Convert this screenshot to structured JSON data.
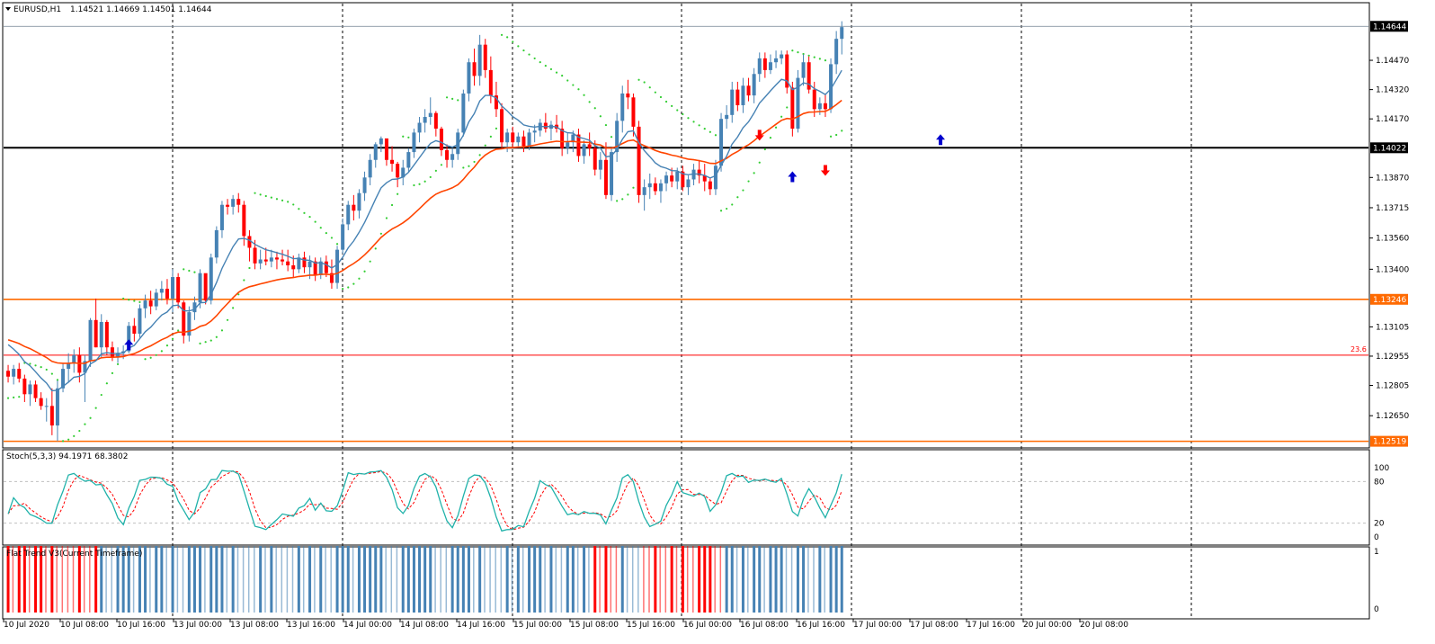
{
  "header": {
    "symbol": "EURUSD,H1",
    "ohlc": "1.14521 1.14669 1.14501 1.14644"
  },
  "price_axis": {
    "ticks": [
      "1.14470",
      "1.14320",
      "1.14170",
      "1.13870",
      "1.13715",
      "1.13560",
      "1.13400",
      "1.13105",
      "1.12955",
      "1.12805",
      "1.12650"
    ],
    "ticks_values": [
      1.1447,
      1.1432,
      1.1417,
      1.1387,
      1.13715,
      1.1356,
      1.134,
      1.13105,
      1.12955,
      1.12805,
      1.1265
    ],
    "current_price": "1.14644",
    "current_price_value": 1.14644
  },
  "levels": [
    {
      "price": 1.14022,
      "label": "1.14022",
      "color": "#000000",
      "tag_bg": "#000000",
      "tag_fg": "#ffffff"
    },
    {
      "price": 1.13246,
      "label": "1.13246",
      "color": "#ff6a00",
      "tag_bg": "#ff6a00",
      "tag_fg": "#ffffff"
    },
    {
      "price": 1.12519,
      "label": "1.12519",
      "color": "#ff6a00",
      "tag_bg": "#ff6a00",
      "tag_fg": "#ffffff"
    }
  ],
  "fib": {
    "price": 1.1296,
    "label": "23.6",
    "color": "#ff0000"
  },
  "time_axis": {
    "labels": [
      "10 Jul 2020",
      "10 Jul 08:00",
      "10 Jul 16:00",
      "13 Jul 00:00",
      "13 Jul 08:00",
      "13 Jul 16:00",
      "14 Jul 00:00",
      "14 Jul 08:00",
      "14 Jul 16:00",
      "15 Jul 00:00",
      "15 Jul 08:00",
      "15 Jul 16:00",
      "16 Jul 00:00",
      "16 Jul 08:00",
      "16 Jul 16:00",
      "17 Jul 00:00",
      "17 Jul 08:00",
      "17 Jul 16:00",
      "20 Jul 00:00",
      "20 Jul 08:00"
    ]
  },
  "stoch": {
    "label": "Stoch(5,3,3) 94.1971 68.3802",
    "ticks": [
      "100",
      "80",
      "20",
      "0"
    ],
    "ticks_values": [
      100,
      80,
      20,
      0
    ]
  },
  "flat_trend": {
    "label": "Flat Trend V3(Current Timeframe)",
    "ticks": [
      "1",
      "0"
    ]
  },
  "colors": {
    "bull": "#4682b4",
    "bear": "#ff0000",
    "ma_fast": "#4682b4",
    "ma_slow": "#ff4500",
    "sar": "#32cd32",
    "stoch_main": "#20b2aa",
    "stoch_signal": "#ff0000",
    "arrow": "#0000cd",
    "arrow_down": "#ff0000"
  },
  "chart_data": {
    "type": "candlestick",
    "timeframe": "H1",
    "candles": [
      [
        1.1288,
        1.1291,
        1.1282,
        1.1285
      ],
      [
        1.1285,
        1.1291,
        1.1281,
        1.1289
      ],
      [
        1.1289,
        1.1292,
        1.1282,
        1.1284
      ],
      [
        1.1284,
        1.1286,
        1.1272,
        1.1276
      ],
      [
        1.1276,
        1.1283,
        1.127,
        1.1281
      ],
      [
        1.1281,
        1.1283,
        1.1272,
        1.1274
      ],
      [
        1.1274,
        1.1277,
        1.1268,
        1.127
      ],
      [
        1.127,
        1.1274,
        1.1262,
        1.127
      ],
      [
        1.127,
        1.1279,
        1.1255,
        1.126
      ],
      [
        1.126,
        1.1283,
        1.1252,
        1.1279
      ],
      [
        1.1279,
        1.1292,
        1.1277,
        1.1289
      ],
      [
        1.1289,
        1.1297,
        1.1282,
        1.1292
      ],
      [
        1.1292,
        1.1299,
        1.1287,
        1.1296
      ],
      [
        1.1296,
        1.13,
        1.1282,
        1.1287
      ],
      [
        1.1287,
        1.1296,
        1.1272,
        1.1293
      ],
      [
        1.1293,
        1.1315,
        1.129,
        1.1314
      ],
      [
        1.1314,
        1.1325,
        1.13,
        1.13
      ],
      [
        1.13,
        1.1317,
        1.1295,
        1.1313
      ],
      [
        1.1313,
        1.1314,
        1.1296,
        1.13
      ],
      [
        1.13,
        1.1303,
        1.1293,
        1.1295
      ],
      [
        1.1295,
        1.13,
        1.1292,
        1.1297
      ],
      [
        1.1297,
        1.1301,
        1.1294,
        1.1298
      ],
      [
        1.1298,
        1.1313,
        1.1297,
        1.1311
      ],
      [
        1.1311,
        1.1315,
        1.1303,
        1.1307
      ],
      [
        1.1307,
        1.1322,
        1.1305,
        1.132
      ],
      [
        1.132,
        1.1327,
        1.1315,
        1.1324
      ],
      [
        1.1324,
        1.1329,
        1.1317,
        1.1321
      ],
      [
        1.1321,
        1.133,
        1.1319,
        1.1328
      ],
      [
        1.1328,
        1.1334,
        1.1324,
        1.133
      ],
      [
        1.133,
        1.1335,
        1.1322,
        1.1325
      ],
      [
        1.1325,
        1.134,
        1.1318,
        1.1336
      ],
      [
        1.1336,
        1.1338,
        1.132,
        1.1323
      ],
      [
        1.1323,
        1.1324,
        1.1302,
        1.1306
      ],
      [
        1.1306,
        1.1321,
        1.1303,
        1.1318
      ],
      [
        1.1318,
        1.1326,
        1.1314,
        1.1323
      ],
      [
        1.1323,
        1.134,
        1.132,
        1.1338
      ],
      [
        1.1338,
        1.1336,
        1.1322,
        1.1324
      ],
      [
        1.1324,
        1.1348,
        1.1322,
        1.1346
      ],
      [
        1.1346,
        1.1362,
        1.1343,
        1.136
      ],
      [
        1.136,
        1.1375,
        1.1356,
        1.1373
      ],
      [
        1.1373,
        1.1376,
        1.1368,
        1.1372
      ],
      [
        1.1372,
        1.1378,
        1.1368,
        1.1376
      ],
      [
        1.1376,
        1.1379,
        1.1369,
        1.1373
      ],
      [
        1.1373,
        1.1375,
        1.1352,
        1.1357
      ],
      [
        1.1357,
        1.136,
        1.1344,
        1.1351
      ],
      [
        1.1351,
        1.1355,
        1.134,
        1.1343
      ],
      [
        1.1343,
        1.135,
        1.134,
        1.1345
      ],
      [
        1.1345,
        1.1351,
        1.1342,
        1.1344
      ],
      [
        1.1344,
        1.135,
        1.1341,
        1.1346
      ],
      [
        1.1346,
        1.1349,
        1.134,
        1.1345
      ],
      [
        1.1345,
        1.135,
        1.1342,
        1.1344
      ],
      [
        1.1344,
        1.135,
        1.1339,
        1.1342
      ],
      [
        1.1342,
        1.1347,
        1.1336,
        1.134
      ],
      [
        1.134,
        1.1348,
        1.1338,
        1.1346
      ],
      [
        1.1346,
        1.1349,
        1.1338,
        1.1341
      ],
      [
        1.1341,
        1.1347,
        1.1335,
        1.1344
      ],
      [
        1.1344,
        1.1346,
        1.1334,
        1.1337
      ],
      [
        1.1337,
        1.1346,
        1.1335,
        1.1344
      ],
      [
        1.1344,
        1.1347,
        1.1336,
        1.1338
      ],
      [
        1.1338,
        1.1345,
        1.133,
        1.1333
      ],
      [
        1.1333,
        1.1352,
        1.133,
        1.135
      ],
      [
        1.135,
        1.1366,
        1.1348,
        1.1363
      ],
      [
        1.1363,
        1.1375,
        1.136,
        1.1373
      ],
      [
        1.1373,
        1.1378,
        1.1365,
        1.137
      ],
      [
        1.137,
        1.1381,
        1.1366,
        1.1379
      ],
      [
        1.1379,
        1.139,
        1.1375,
        1.1387
      ],
      [
        1.1387,
        1.1399,
        1.1383,
        1.1396
      ],
      [
        1.1396,
        1.1405,
        1.1392,
        1.1404
      ],
      [
        1.1404,
        1.1408,
        1.14,
        1.1407
      ],
      [
        1.1407,
        1.1405,
        1.1393,
        1.1396
      ],
      [
        1.1396,
        1.1403,
        1.139,
        1.1394
      ],
      [
        1.1394,
        1.1395,
        1.1382,
        1.1387
      ],
      [
        1.1387,
        1.1396,
        1.1383,
        1.1392
      ],
      [
        1.1392,
        1.1402,
        1.139,
        1.14
      ],
      [
        1.14,
        1.1412,
        1.1397,
        1.141
      ],
      [
        1.141,
        1.1418,
        1.1405,
        1.1415
      ],
      [
        1.1415,
        1.1422,
        1.141,
        1.1418
      ],
      [
        1.1418,
        1.1428,
        1.1414,
        1.142
      ],
      [
        1.142,
        1.1421,
        1.1408,
        1.1412
      ],
      [
        1.1412,
        1.1413,
        1.1398,
        1.1401
      ],
      [
        1.1401,
        1.1404,
        1.1392,
        1.1396
      ],
      [
        1.1396,
        1.1402,
        1.1392,
        1.1399
      ],
      [
        1.1399,
        1.1412,
        1.1396,
        1.141
      ],
      [
        1.141,
        1.1432,
        1.1408,
        1.143
      ],
      [
        1.143,
        1.1448,
        1.1426,
        1.1446
      ],
      [
        1.1446,
        1.1453,
        1.1434,
        1.1439
      ],
      [
        1.1439,
        1.146,
        1.1434,
        1.1455
      ],
      [
        1.1455,
        1.1458,
        1.1438,
        1.1442
      ],
      [
        1.1442,
        1.1449,
        1.1425,
        1.1429
      ],
      [
        1.1429,
        1.1436,
        1.1418,
        1.1422
      ],
      [
        1.1422,
        1.1425,
        1.1402,
        1.1405
      ],
      [
        1.1405,
        1.1412,
        1.14,
        1.141
      ],
      [
        1.141,
        1.1413,
        1.1402,
        1.1405
      ],
      [
        1.1405,
        1.141,
        1.1403,
        1.1408
      ],
      [
        1.1408,
        1.1411,
        1.14,
        1.1403
      ],
      [
        1.1403,
        1.1412,
        1.1401,
        1.141
      ],
      [
        1.141,
        1.1414,
        1.1405,
        1.1411
      ],
      [
        1.1411,
        1.1417,
        1.1408,
        1.1415
      ],
      [
        1.1415,
        1.142,
        1.141,
        1.1412
      ],
      [
        1.1412,
        1.1416,
        1.1406,
        1.1414
      ],
      [
        1.1414,
        1.1419,
        1.141,
        1.1412
      ],
      [
        1.1412,
        1.1416,
        1.1398,
        1.1402
      ],
      [
        1.1402,
        1.141,
        1.1399,
        1.1405
      ],
      [
        1.1405,
        1.1411,
        1.14,
        1.1409
      ],
      [
        1.1409,
        1.1412,
        1.1395,
        1.1398
      ],
      [
        1.1398,
        1.1406,
        1.1394,
        1.1404
      ],
      [
        1.1404,
        1.141,
        1.1398,
        1.1402
      ],
      [
        1.1402,
        1.1406,
        1.1388,
        1.1391
      ],
      [
        1.1391,
        1.14,
        1.1386,
        1.1396
      ],
      [
        1.1396,
        1.1405,
        1.1376,
        1.1378
      ],
      [
        1.1378,
        1.1402,
        1.1375,
        1.14
      ],
      [
        1.14,
        1.142,
        1.1395,
        1.1416
      ],
      [
        1.1416,
        1.1434,
        1.141,
        1.143
      ],
      [
        1.143,
        1.1437,
        1.1422,
        1.1428
      ],
      [
        1.1428,
        1.143,
        1.1408,
        1.1413
      ],
      [
        1.1413,
        1.1416,
        1.1374,
        1.1378
      ],
      [
        1.1378,
        1.1386,
        1.137,
        1.1382
      ],
      [
        1.1382,
        1.1389,
        1.1376,
        1.1384
      ],
      [
        1.1384,
        1.1387,
        1.1378,
        1.138
      ],
      [
        1.138,
        1.1386,
        1.1374,
        1.1384
      ],
      [
        1.1384,
        1.139,
        1.138,
        1.1388
      ],
      [
        1.1388,
        1.1392,
        1.1382,
        1.1385
      ],
      [
        1.1385,
        1.1392,
        1.1381,
        1.139
      ],
      [
        1.139,
        1.1393,
        1.138,
        1.1382
      ],
      [
        1.1382,
        1.1388,
        1.1378,
        1.1386
      ],
      [
        1.1386,
        1.1394,
        1.1383,
        1.1391
      ],
      [
        1.1391,
        1.1396,
        1.1384,
        1.1388
      ],
      [
        1.1388,
        1.1394,
        1.138,
        1.1385
      ],
      [
        1.1385,
        1.1387,
        1.1378,
        1.1381
      ],
      [
        1.1381,
        1.1396,
        1.1378,
        1.1393
      ],
      [
        1.1393,
        1.142,
        1.139,
        1.1417
      ],
      [
        1.1417,
        1.1424,
        1.1412,
        1.1419
      ],
      [
        1.1419,
        1.1436,
        1.1415,
        1.1432
      ],
      [
        1.1432,
        1.1436,
        1.1421,
        1.1424
      ],
      [
        1.1424,
        1.1438,
        1.142,
        1.1434
      ],
      [
        1.1434,
        1.1438,
        1.1426,
        1.1429
      ],
      [
        1.1429,
        1.1443,
        1.1425,
        1.144
      ],
      [
        1.144,
        1.1451,
        1.1436,
        1.1448
      ],
      [
        1.1448,
        1.1451,
        1.1438,
        1.1442
      ],
      [
        1.1442,
        1.145,
        1.144,
        1.1446
      ],
      [
        1.1446,
        1.1452,
        1.1443,
        1.1448
      ],
      [
        1.1448,
        1.1452,
        1.1445,
        1.145
      ],
      [
        1.145,
        1.1452,
        1.143,
        1.1433
      ],
      [
        1.1433,
        1.1436,
        1.1408,
        1.1412
      ],
      [
        1.1412,
        1.1442,
        1.141,
        1.1438
      ],
      [
        1.1438,
        1.145,
        1.1434,
        1.1446
      ],
      [
        1.1446,
        1.1449,
        1.143,
        1.1432
      ],
      [
        1.1432,
        1.1436,
        1.1418,
        1.1422
      ],
      [
        1.1422,
        1.1428,
        1.1419,
        1.1425
      ],
      [
        1.1425,
        1.143,
        1.1418,
        1.1422
      ],
      [
        1.1422,
        1.1448,
        1.142,
        1.1445
      ],
      [
        1.1445,
        1.1462,
        1.144,
        1.1458
      ],
      [
        1.1458,
        1.1467,
        1.145,
        1.1464
      ]
    ],
    "first_candle_label": "10 Jul 2020",
    "price_range": [
      1.1251,
      1.1469
    ],
    "stoch_range": [
      0,
      100
    ],
    "horizontal_levels": [
      1.14022,
      1.13246,
      1.12519,
      1.1296
    ]
  }
}
